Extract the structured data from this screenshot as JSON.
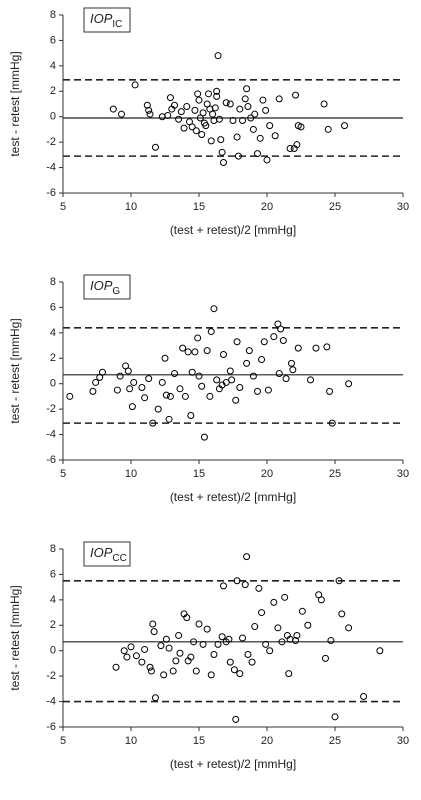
{
  "chart_data": [
    {
      "type": "scatter",
      "label": {
        "main": "IOP",
        "sub": "IC"
      },
      "xlabel": "(test + retest)/2 [mmHg]",
      "ylabel": "test - retest [mmHg]",
      "xlim": [
        5,
        30
      ],
      "ylim": [
        -6,
        8
      ],
      "xticks": [
        5,
        10,
        15,
        20,
        25,
        30
      ],
      "yticks": [
        -6,
        -4,
        -2,
        0,
        2,
        4,
        6,
        8
      ],
      "color": "#000000",
      "hlines": [
        {
          "value": 2.9,
          "style": "dashed"
        },
        {
          "value": -0.1,
          "style": "solid"
        },
        {
          "value": -3.1,
          "style": "dashed"
        }
      ],
      "x": [
        8.7,
        9.3,
        10.3,
        11.2,
        11.3,
        11.4,
        11.8,
        12.7,
        12.9,
        13.0,
        13.2,
        13.5,
        13.7,
        13.9,
        14.1,
        14.3,
        14.5,
        14.7,
        14.9,
        15.0,
        15.1,
        15.2,
        15.3,
        15.5,
        15.6,
        15.7,
        15.8,
        15.9,
        16.1,
        16.2,
        16.3,
        16.3,
        16.4,
        16.5,
        16.6,
        16.7,
        16.8,
        17.0,
        17.3,
        17.5,
        17.8,
        17.9,
        18.2,
        18.4,
        18.5,
        18.6,
        18.8,
        19.1,
        19.3,
        19.5,
        19.7,
        19.9,
        20.0,
        20.2,
        20.6,
        20.9,
        21.7,
        22.0,
        22.1,
        22.3,
        22.5,
        24.2,
        24.5,
        25.7,
        14.8,
        15.4,
        12.3,
        18.0,
        19.0,
        22.2,
        16.0
      ],
      "values": [
        0.6,
        0.2,
        2.5,
        0.9,
        0.5,
        0.2,
        -2.4,
        0.1,
        1.5,
        0.6,
        0.9,
        -0.2,
        0.4,
        -0.9,
        0.8,
        -0.4,
        -0.8,
        0.5,
        1.8,
        1.3,
        -0.1,
        -1.4,
        0.3,
        -0.7,
        1.0,
        1.8,
        0.6,
        -1.9,
        -0.3,
        0.7,
        2.0,
        1.6,
        4.8,
        -0.2,
        -1.8,
        -2.8,
        -3.6,
        1.1,
        1.0,
        -0.3,
        -1.6,
        -3.1,
        -0.3,
        1.4,
        2.2,
        0.8,
        -0.1,
        0.2,
        -2.9,
        -1.7,
        1.3,
        0.5,
        -3.4,
        -0.7,
        -1.5,
        1.4,
        -2.5,
        -2.5,
        1.7,
        -0.7,
        -0.8,
        1.0,
        -1.0,
        -0.7,
        -1.1,
        -0.5,
        0.0,
        0.6,
        -1.0,
        -2.2,
        0.2
      ]
    },
    {
      "type": "scatter",
      "label": {
        "main": "IOP",
        "sub": "G"
      },
      "xlabel": "(test + retest)/2 [mmHg]",
      "ylabel": "test - retest [mmHg]",
      "xlim": [
        5,
        30
      ],
      "ylim": [
        -6,
        8
      ],
      "xticks": [
        5,
        10,
        15,
        20,
        25,
        30
      ],
      "yticks": [
        -6,
        -4,
        -2,
        0,
        2,
        4,
        6,
        8
      ],
      "color": "#000000",
      "hlines": [
        {
          "value": 4.4,
          "style": "dashed"
        },
        {
          "value": 0.7,
          "style": "solid"
        },
        {
          "value": -3.1,
          "style": "dashed"
        }
      ],
      "x": [
        5.5,
        7.2,
        7.4,
        7.7,
        7.9,
        9.0,
        9.2,
        9.6,
        9.8,
        9.9,
        10.1,
        10.2,
        10.8,
        11.0,
        11.3,
        11.6,
        12.0,
        12.3,
        12.5,
        12.6,
        12.8,
        12.9,
        13.2,
        13.6,
        13.8,
        14.0,
        14.2,
        14.4,
        14.5,
        14.7,
        14.9,
        15.0,
        15.2,
        15.4,
        15.6,
        15.8,
        15.9,
        16.1,
        16.3,
        16.5,
        16.8,
        17.0,
        17.3,
        17.4,
        17.7,
        17.8,
        18.0,
        18.5,
        18.7,
        19.0,
        19.3,
        19.6,
        19.8,
        20.1,
        20.5,
        20.8,
        20.9,
        21.2,
        21.4,
        21.8,
        21.9,
        22.3,
        23.2,
        23.6,
        24.4,
        24.6,
        24.8,
        26.0,
        21.0,
        16.7
      ],
      "values": [
        -1.0,
        -0.6,
        0.1,
        0.5,
        0.9,
        -0.5,
        0.6,
        1.4,
        1.0,
        -0.4,
        -1.8,
        0.1,
        -0.3,
        -1.1,
        0.4,
        -3.1,
        -2.0,
        0.1,
        2.0,
        -0.9,
        -2.8,
        -1.0,
        0.8,
        -0.4,
        2.8,
        -1.0,
        2.5,
        -2.5,
        0.9,
        2.5,
        3.6,
        0.6,
        -0.2,
        -4.2,
        2.6,
        -1.0,
        4.1,
        5.9,
        0.3,
        -0.4,
        2.3,
        0.1,
        1.0,
        0.3,
        -1.3,
        3.3,
        -0.3,
        1.6,
        2.6,
        0.6,
        -0.6,
        1.9,
        3.3,
        -0.5,
        3.7,
        4.7,
        0.8,
        3.4,
        0.4,
        1.6,
        1.1,
        2.8,
        0.3,
        2.8,
        2.9,
        -0.6,
        -3.1,
        0.0,
        4.3,
        -0.1
      ]
    },
    {
      "type": "scatter",
      "label": {
        "main": "IOP",
        "sub": "CC"
      },
      "xlabel": "(test + retest)/2 [mmHg]",
      "ylabel": "test - retest [mmHg]",
      "xlim": [
        5,
        30
      ],
      "ylim": [
        -6,
        8
      ],
      "xticks": [
        5,
        10,
        15,
        20,
        25,
        30
      ],
      "yticks": [
        -6,
        -4,
        -2,
        0,
        2,
        4,
        6,
        8
      ],
      "color": "#000000",
      "hlines": [
        {
          "value": 5.5,
          "style": "dashed"
        },
        {
          "value": 0.7,
          "style": "solid"
        },
        {
          "value": -4.0,
          "style": "dashed"
        }
      ],
      "x": [
        8.9,
        9.5,
        9.7,
        10.0,
        10.4,
        10.8,
        11.0,
        11.4,
        11.5,
        11.6,
        11.7,
        11.8,
        12.2,
        12.4,
        12.6,
        12.8,
        13.1,
        13.3,
        13.5,
        13.6,
        13.9,
        14.1,
        14.2,
        14.4,
        14.6,
        14.8,
        15.0,
        15.3,
        15.6,
        15.9,
        16.4,
        16.7,
        16.8,
        17.0,
        17.3,
        17.6,
        17.7,
        17.8,
        18.0,
        18.2,
        18.4,
        18.5,
        18.6,
        18.9,
        19.1,
        19.4,
        19.6,
        19.9,
        20.2,
        20.5,
        20.8,
        21.1,
        21.3,
        21.5,
        21.6,
        21.7,
        22.1,
        22.2,
        22.6,
        23.0,
        23.8,
        24.0,
        24.3,
        24.7,
        25.0,
        25.3,
        25.5,
        26.0,
        27.1,
        28.3,
        17.2,
        16.1
      ],
      "values": [
        -1.3,
        0.0,
        -0.5,
        0.3,
        -0.4,
        -0.9,
        0.1,
        -1.3,
        -1.6,
        2.1,
        1.5,
        -3.7,
        0.4,
        -1.9,
        0.9,
        0.2,
        -1.6,
        -0.8,
        1.2,
        -0.2,
        2.9,
        2.6,
        -0.8,
        -0.5,
        0.7,
        -1.6,
        2.1,
        0.5,
        1.7,
        -1.9,
        0.5,
        1.1,
        5.1,
        0.7,
        -0.9,
        -1.5,
        -5.4,
        5.5,
        -1.8,
        1.0,
        5.2,
        7.4,
        -0.3,
        -0.9,
        1.9,
        4.9,
        3.0,
        0.5,
        0.0,
        3.8,
        1.8,
        0.7,
        4.2,
        1.2,
        -1.8,
        0.9,
        0.8,
        1.2,
        3.1,
        2.0,
        4.4,
        4.0,
        -0.6,
        0.8,
        -5.2,
        5.5,
        2.9,
        1.8,
        -3.6,
        0.0,
        0.9,
        -0.3
      ]
    }
  ]
}
